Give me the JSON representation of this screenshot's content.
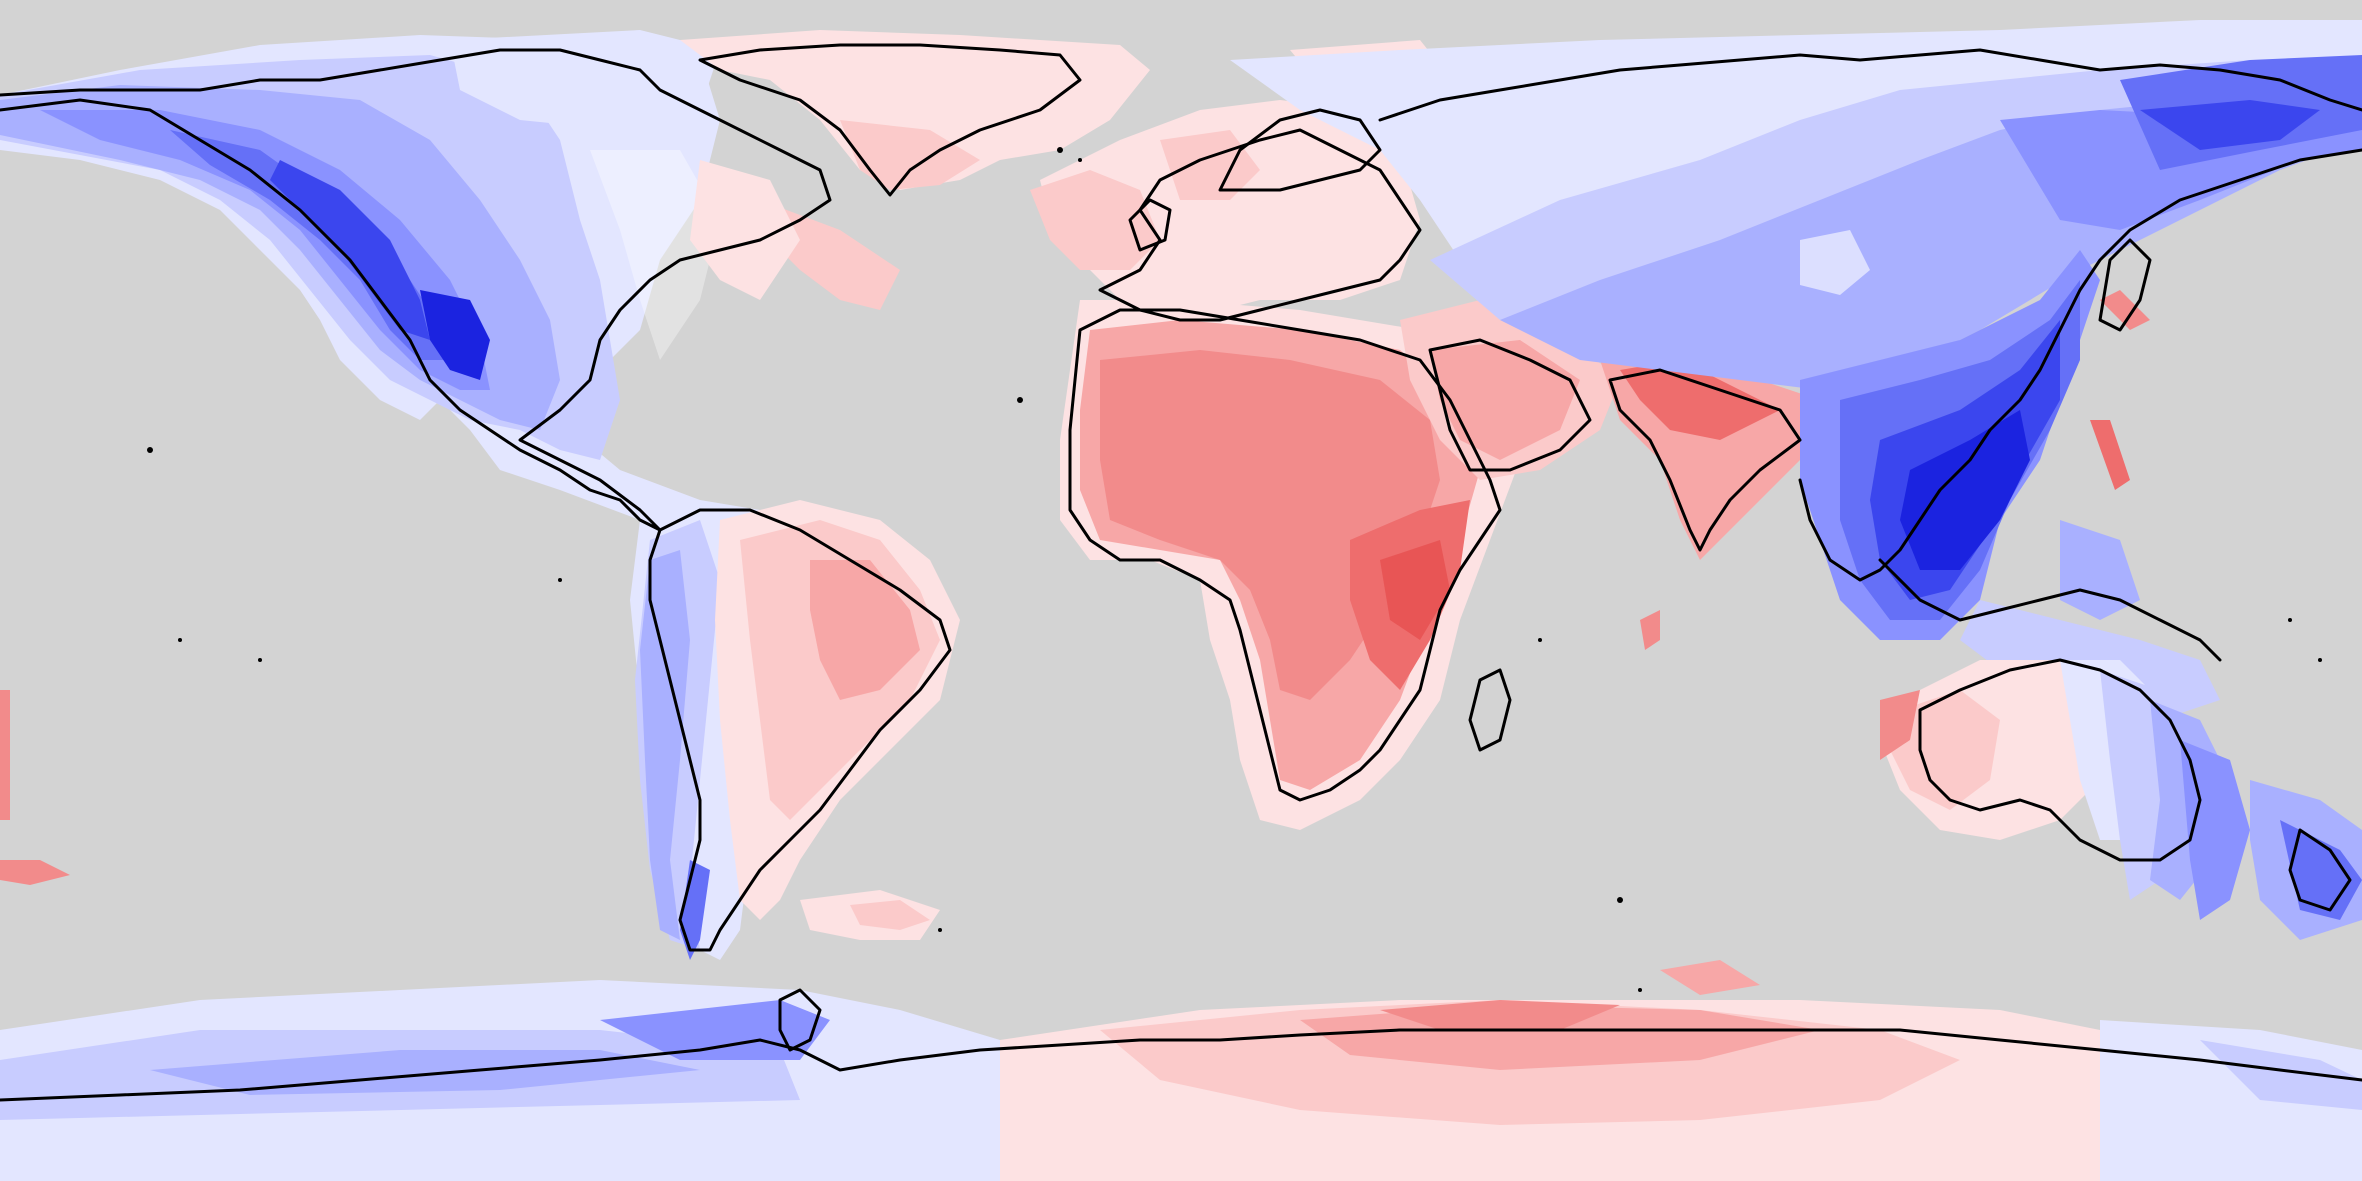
{
  "map": {
    "projection": "equirectangular",
    "extent": "global",
    "ocean_color": "#d3d3d3",
    "coastline_color": "#000000",
    "color_scale": {
      "type": "diverging",
      "negative": [
        "#e3e6ff",
        "#c8ccff",
        "#a9b0ff",
        "#8a92ff",
        "#6570f7",
        "#3b46ee",
        "#1b23e0"
      ],
      "neutral": "#fde8ea",
      "positive": [
        "#fde2e3",
        "#fbcaca",
        "#f7a7a7",
        "#f28b8b",
        "#ee6d6d",
        "#e85555"
      ]
    },
    "regions": [
      {
        "name": "north-america-west",
        "sign": "negative",
        "intensity": "high"
      },
      {
        "name": "north-america-east",
        "sign": "negative",
        "intensity": "low"
      },
      {
        "name": "greenland",
        "sign": "positive",
        "intensity": "low"
      },
      {
        "name": "south-america-east",
        "sign": "positive",
        "intensity": "medium"
      },
      {
        "name": "south-america-west",
        "sign": "negative",
        "intensity": "low"
      },
      {
        "name": "europe",
        "sign": "positive",
        "intensity": "low"
      },
      {
        "name": "africa",
        "sign": "positive",
        "intensity": "medium"
      },
      {
        "name": "east-africa",
        "sign": "positive",
        "intensity": "high"
      },
      {
        "name": "arabia",
        "sign": "positive",
        "intensity": "medium"
      },
      {
        "name": "india",
        "sign": "positive",
        "intensity": "high"
      },
      {
        "name": "siberia",
        "sign": "negative",
        "intensity": "medium"
      },
      {
        "name": "east-asia",
        "sign": "negative",
        "intensity": "high"
      },
      {
        "name": "southeast-asia",
        "sign": "negative",
        "intensity": "high"
      },
      {
        "name": "australia-west",
        "sign": "positive",
        "intensity": "low"
      },
      {
        "name": "australia-east",
        "sign": "negative",
        "intensity": "medium"
      },
      {
        "name": "new-zealand",
        "sign": "negative",
        "intensity": "medium"
      },
      {
        "name": "west-antarctica",
        "sign": "negative",
        "intensity": "medium"
      },
      {
        "name": "east-antarctica",
        "sign": "positive",
        "intensity": "medium"
      }
    ]
  }
}
